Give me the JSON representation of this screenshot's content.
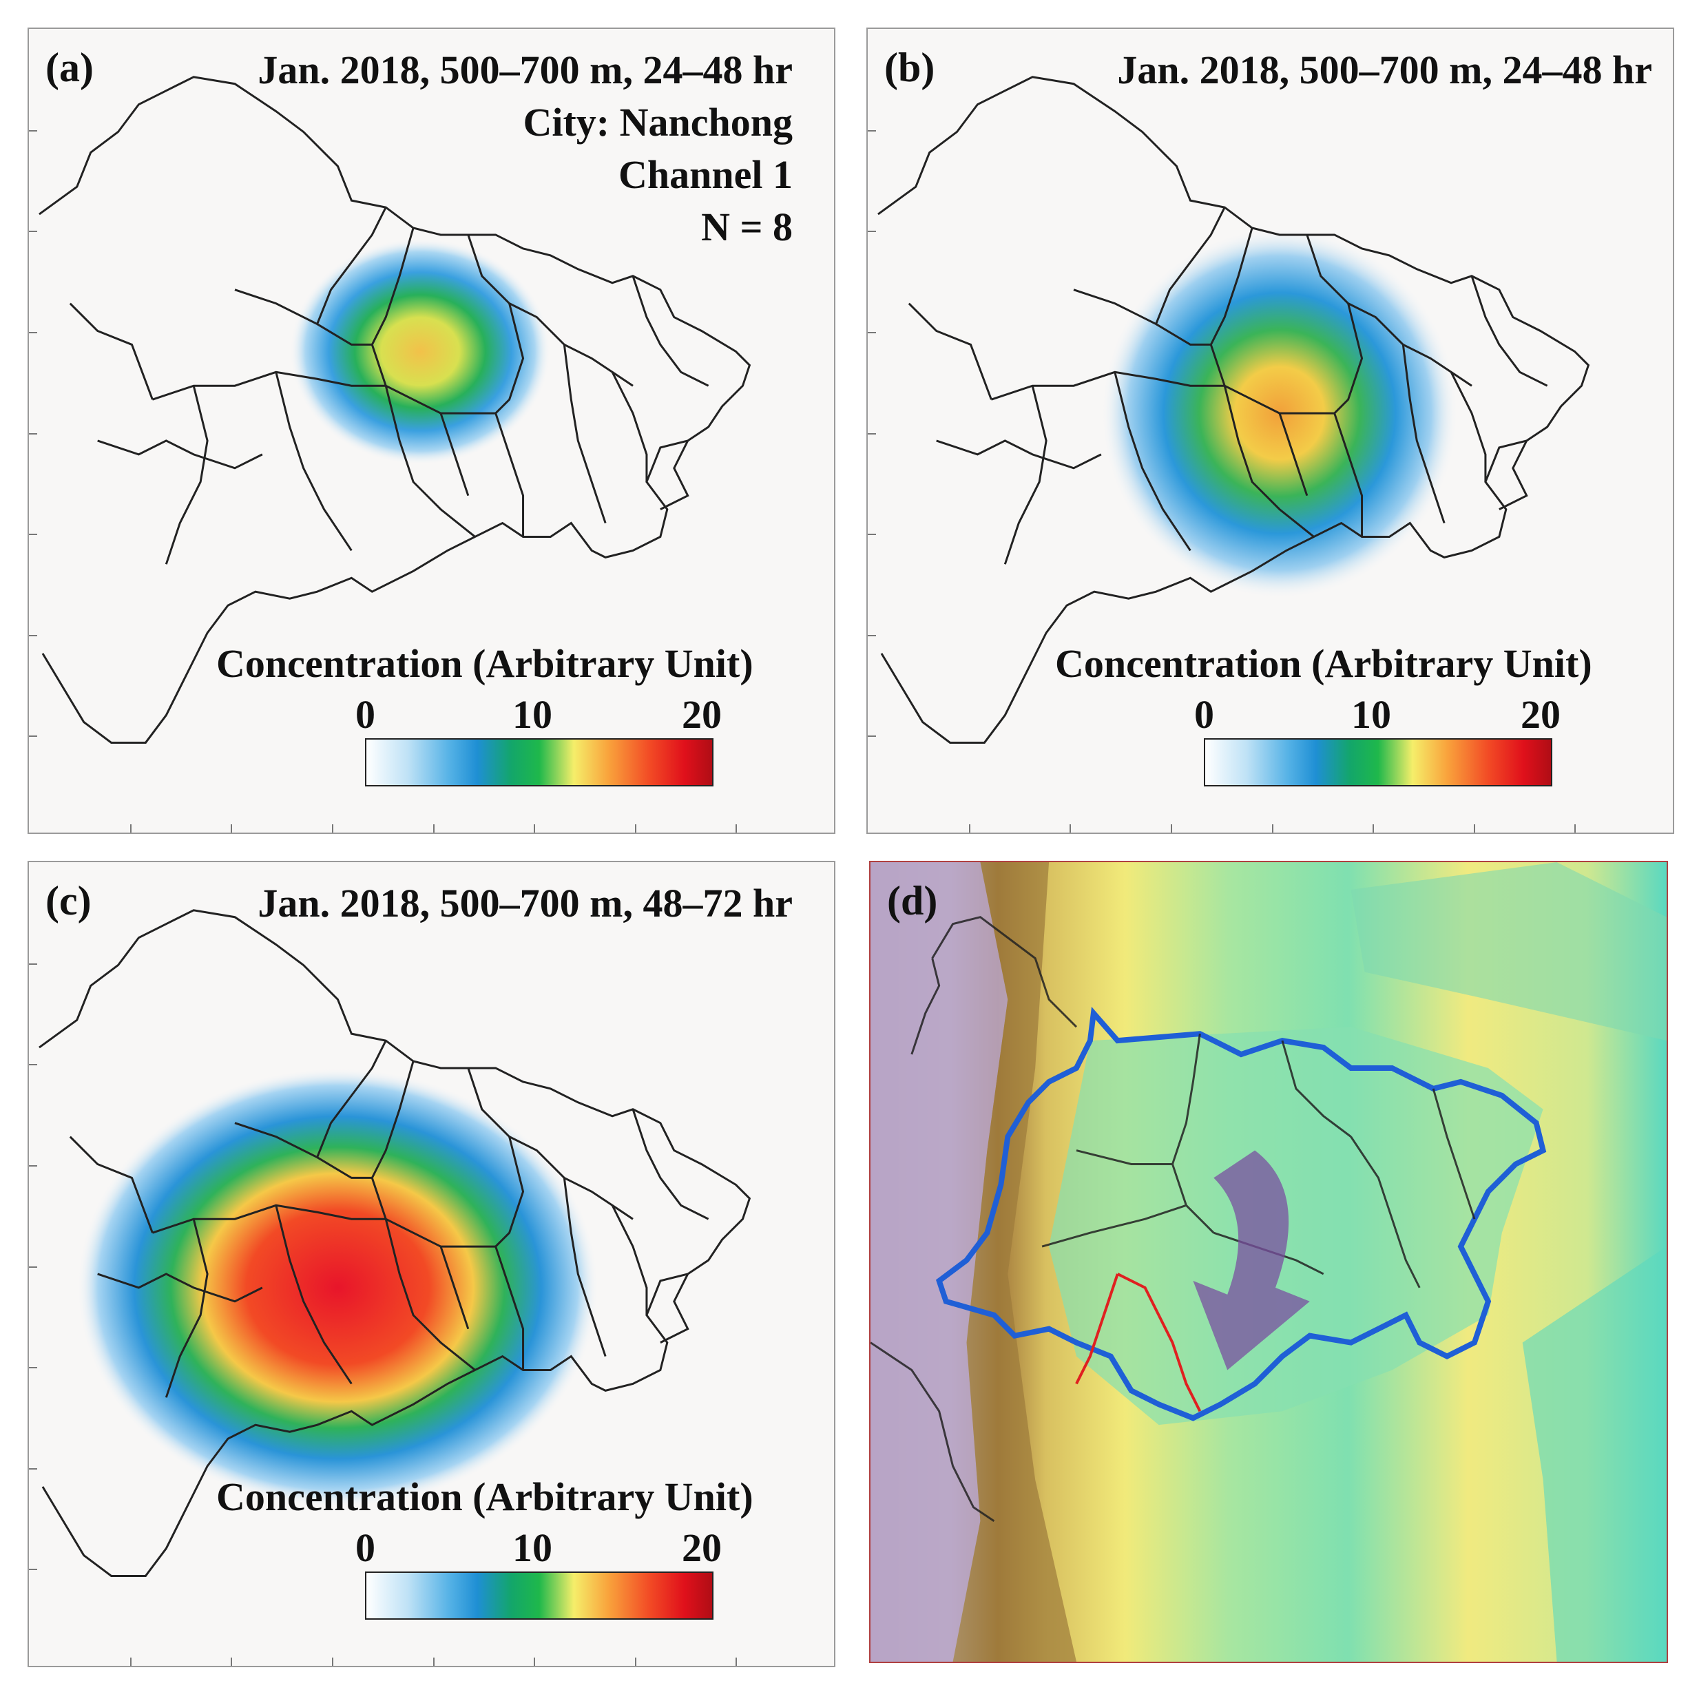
{
  "panels": {
    "a": {
      "label": "(a)",
      "title_lines": [
        "Jan. 2018, 500–700 m, 24–48 hr",
        "City: Nanchong",
        "Channel 1",
        "N = 8"
      ]
    },
    "b": {
      "label": "(b)",
      "title_lines": [
        "Jan. 2018, 500–700 m, 24–48 hr"
      ]
    },
    "c": {
      "label": "(c)",
      "title_lines": [
        "Jan. 2018, 500–700 m, 48–72 hr"
      ]
    },
    "d": {
      "label": "(d)"
    }
  },
  "colorbar": {
    "title": "Concentration (Arbitrary Unit)",
    "ticks": [
      "0",
      "10",
      "20"
    ],
    "range": [
      0,
      20
    ]
  },
  "colors": {
    "boundary": "#1f5fd6",
    "highlight": "#e02020",
    "arrow": "#7a4fa0"
  }
}
